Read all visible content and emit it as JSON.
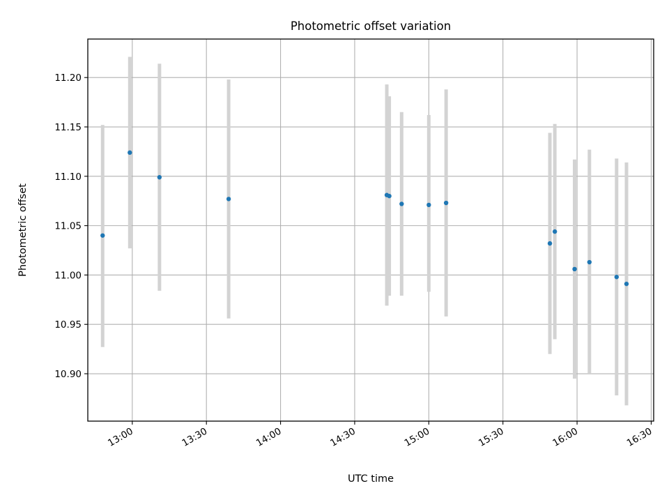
{
  "chart_data": {
    "type": "scatter",
    "title": "Photometric offset variation",
    "xlabel": "UTC time",
    "ylabel": "Photometric offset",
    "xlim": [
      "12:42",
      "16:31"
    ],
    "ylim": [
      10.852,
      11.239
    ],
    "x_ticks": [
      "13:00",
      "13:30",
      "14:00",
      "14:30",
      "15:00",
      "15:30",
      "16:00",
      "16:30"
    ],
    "y_ticks": [
      "10.90",
      "10.95",
      "11.00",
      "11.05",
      "11.10",
      "11.15",
      "11.20"
    ],
    "grid": true,
    "colors": {
      "marker": "#1f77b4",
      "error_bar": "#d3d3d3",
      "grid": "#b0b0b0"
    },
    "series": [
      {
        "points": [
          {
            "x": "12:48",
            "y": 11.04,
            "ylow": 10.927,
            "yhigh": 11.152
          },
          {
            "x": "12:59",
            "y": 11.124,
            "ylow": 11.027,
            "yhigh": 11.221
          },
          {
            "x": "13:11",
            "y": 11.099,
            "ylow": 10.984,
            "yhigh": 11.214
          },
          {
            "x": "13:39",
            "y": 11.077,
            "ylow": 10.956,
            "yhigh": 11.198
          },
          {
            "x": "14:43",
            "y": 11.081,
            "ylow": 10.969,
            "yhigh": 11.193
          },
          {
            "x": "14:44",
            "y": 11.08,
            "ylow": 10.979,
            "yhigh": 11.181
          },
          {
            "x": "14:49",
            "y": 11.072,
            "ylow": 10.979,
            "yhigh": 11.165
          },
          {
            "x": "15:00",
            "y": 11.071,
            "ylow": 10.983,
            "yhigh": 11.162
          },
          {
            "x": "15:07",
            "y": 11.073,
            "ylow": 10.958,
            "yhigh": 11.188
          },
          {
            "x": "15:49",
            "y": 11.032,
            "ylow": 10.92,
            "yhigh": 11.144
          },
          {
            "x": "15:51",
            "y": 11.044,
            "ylow": 10.935,
            "yhigh": 11.153
          },
          {
            "x": "15:59",
            "y": 11.006,
            "ylow": 10.895,
            "yhigh": 11.117
          },
          {
            "x": "16:05",
            "y": 11.013,
            "ylow": 10.9,
            "yhigh": 11.127
          },
          {
            "x": "16:16",
            "y": 10.998,
            "ylow": 10.878,
            "yhigh": 11.118
          },
          {
            "x": "16:20",
            "y": 10.991,
            "ylow": 10.868,
            "yhigh": 11.114
          }
        ]
      }
    ]
  }
}
